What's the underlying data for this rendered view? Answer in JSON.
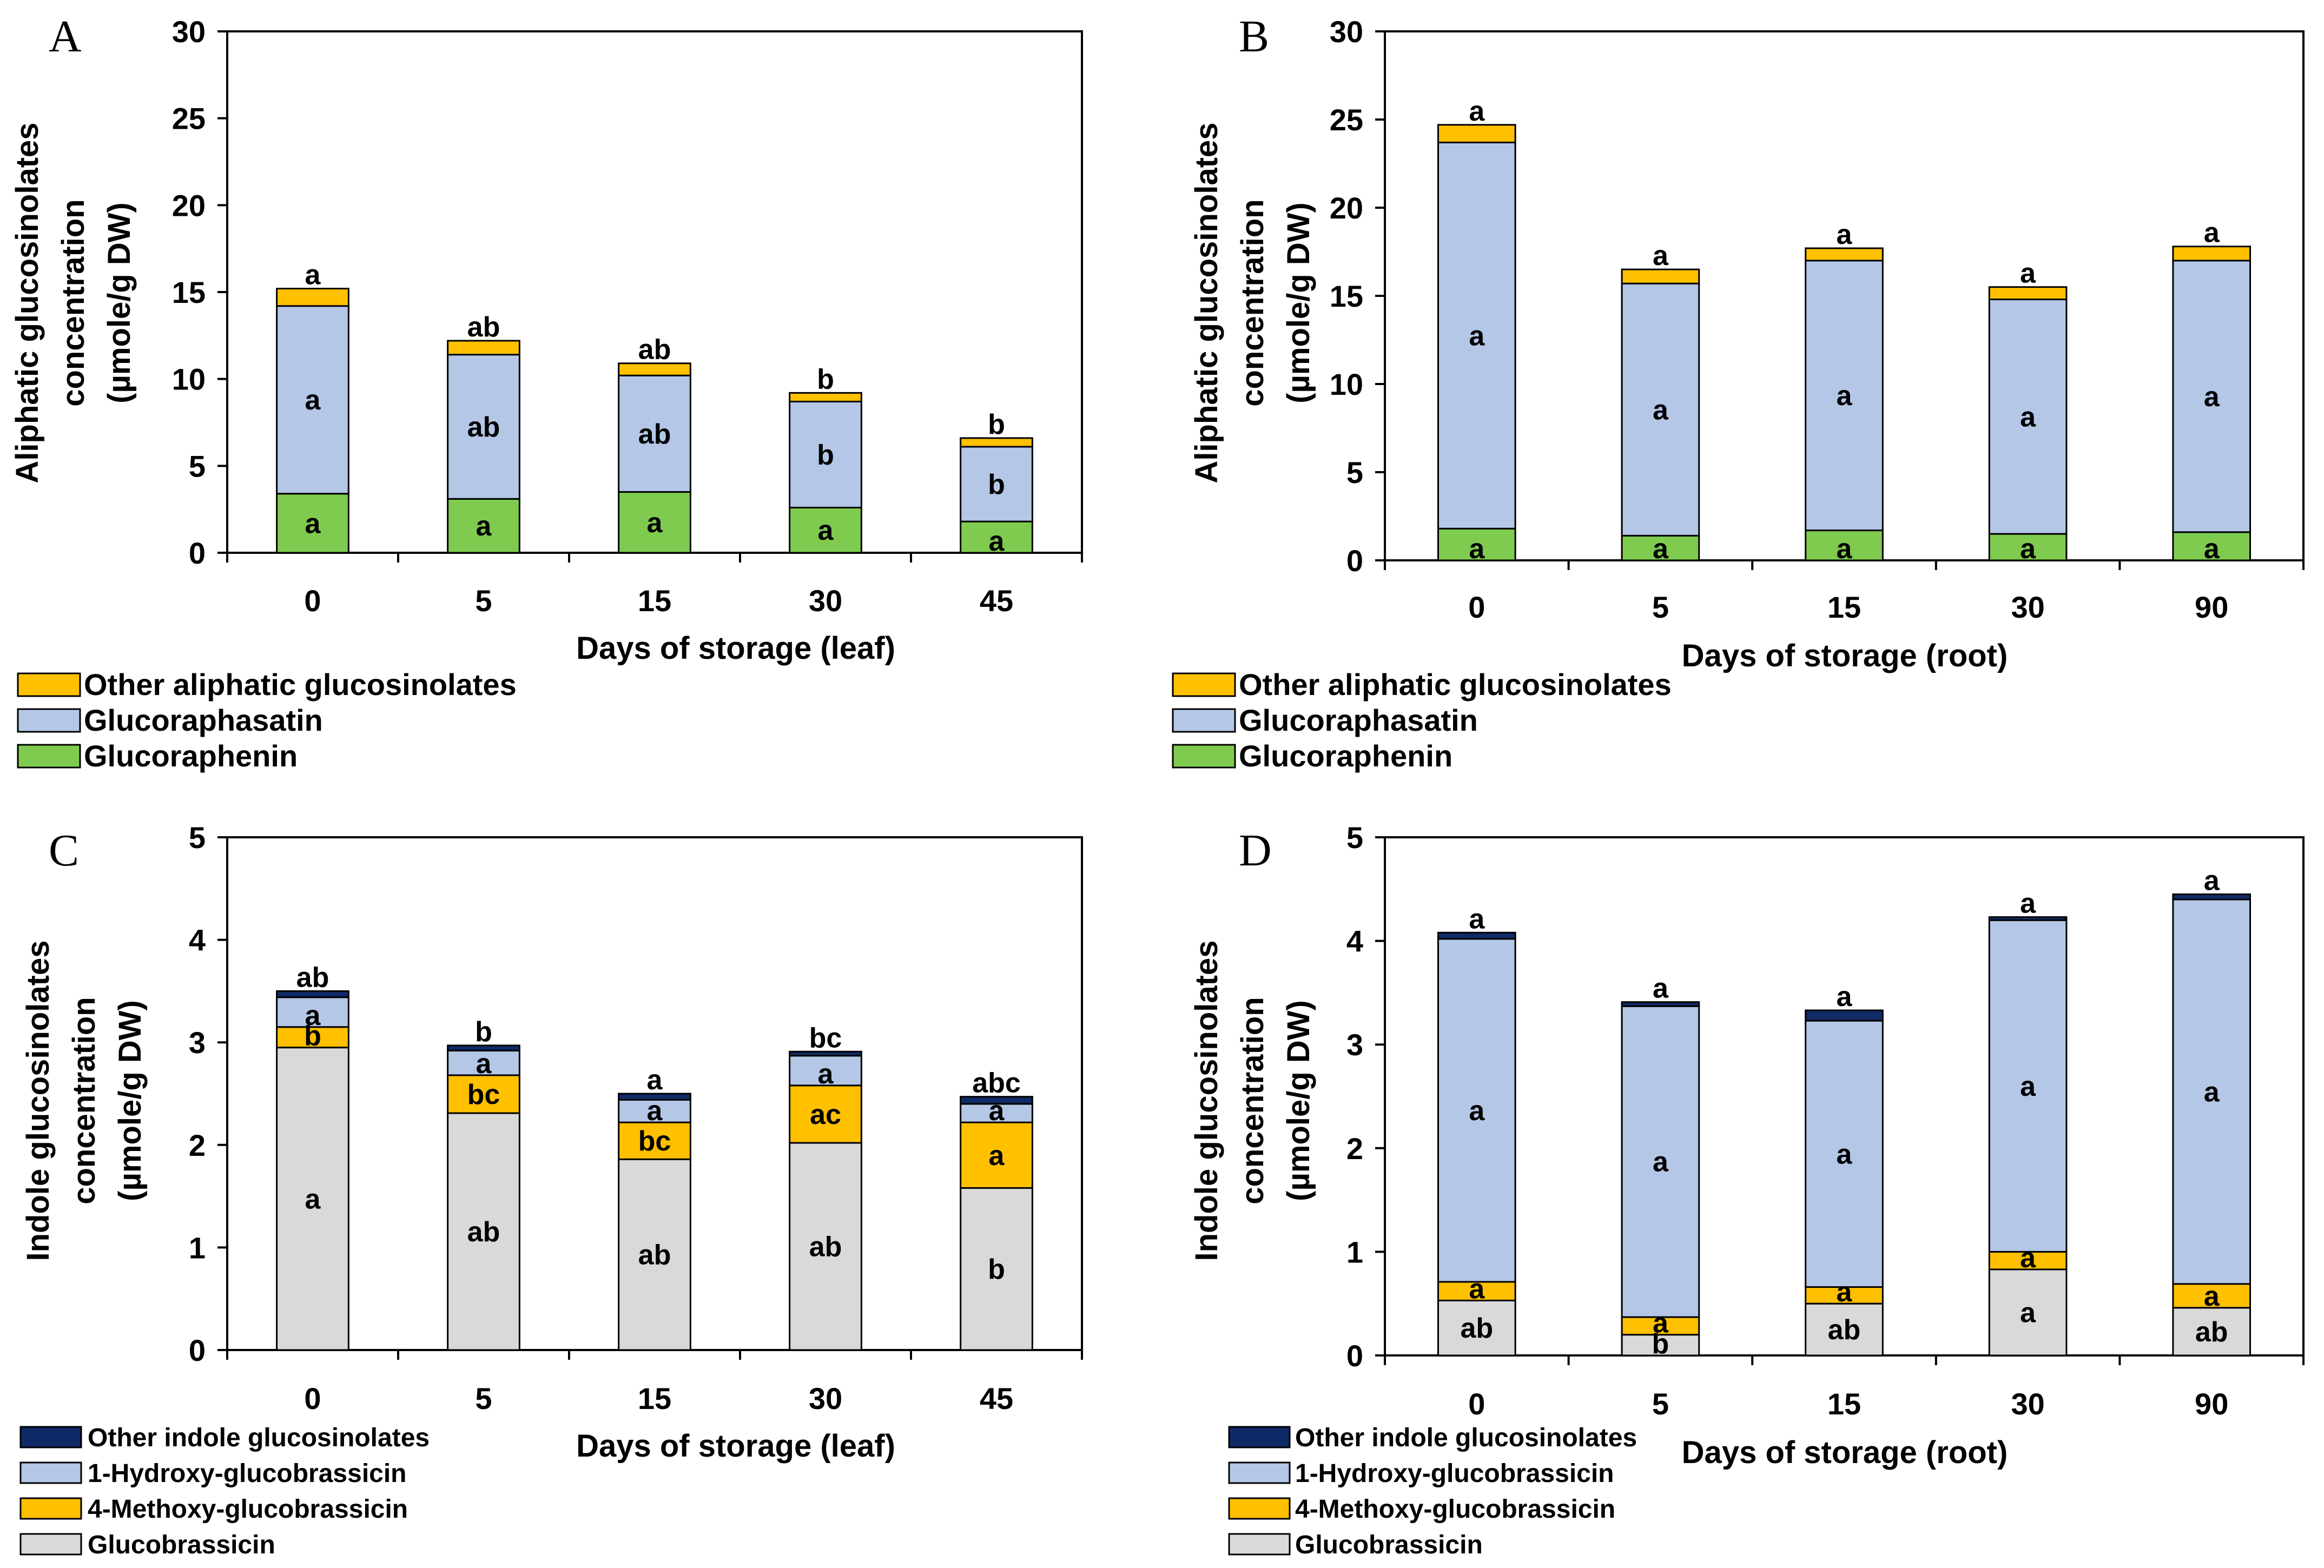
{
  "colors": {
    "other_aliphatic": "#FFC000",
    "glucoraphasatin": "#B4C7E7",
    "glucoraphenin": "#7FCB4F",
    "other_indole": "#0F2A66",
    "hydroxy": "#B4C7E7",
    "methoxy": "#FFC000",
    "glucobrassicin": "#D9D9D9"
  },
  "chart_data": [
    {
      "panel": "A",
      "type": "bar",
      "stacked": true,
      "xlabel": "Days of storage (leaf)",
      "ylabel_lines": [
        "Aliphatic glucosinolates",
        "concentration",
        "(µmole/g DW)"
      ],
      "ylim": [
        0,
        30
      ],
      "yticks": [
        "0",
        "5",
        "10",
        "15",
        "20",
        "25",
        "30"
      ],
      "categories": [
        "0",
        "5",
        "15",
        "30",
        "45"
      ],
      "series": [
        {
          "name": "Glucoraphenin",
          "color_key": "glucoraphenin",
          "values": [
            3.4,
            3.1,
            3.5,
            2.6,
            1.8
          ],
          "labels": [
            "a",
            "a",
            "a",
            "a",
            "a"
          ]
        },
        {
          "name": "Glucoraphasatin",
          "color_key": "glucoraphasatin",
          "values": [
            10.8,
            8.3,
            6.7,
            6.1,
            4.3
          ],
          "labels": [
            "a",
            "ab",
            "ab",
            "b",
            "b"
          ]
        },
        {
          "name": "Other aliphatic glucosinolates",
          "color_key": "other_aliphatic",
          "values": [
            1.0,
            0.8,
            0.7,
            0.5,
            0.5
          ],
          "labels": [
            "a",
            "ab",
            "ab",
            "b",
            "b"
          ]
        }
      ],
      "legend_order": [
        2,
        1,
        0
      ]
    },
    {
      "panel": "B",
      "type": "bar",
      "stacked": true,
      "xlabel": "Days of storage (root)",
      "ylabel_lines": [
        "Aliphatic glucosinolates",
        "concentration",
        "(µmole/g DW)"
      ],
      "ylim": [
        0,
        30
      ],
      "yticks": [
        "0",
        "5",
        "10",
        "15",
        "20",
        "25",
        "30"
      ],
      "categories": [
        "0",
        "5",
        "15",
        "30",
        "90"
      ],
      "series": [
        {
          "name": "Glucoraphenin",
          "color_key": "glucoraphenin",
          "values": [
            1.8,
            1.4,
            1.7,
            1.5,
            1.6
          ],
          "labels": [
            "a",
            "a",
            "a",
            "a",
            "a"
          ]
        },
        {
          "name": "Glucoraphasatin",
          "color_key": "glucoraphasatin",
          "values": [
            21.9,
            14.3,
            15.3,
            13.3,
            15.4
          ],
          "labels": [
            "a",
            "a",
            "a",
            "a",
            "a"
          ]
        },
        {
          "name": "Other aliphatic glucosinolates",
          "color_key": "other_aliphatic",
          "values": [
            1.0,
            0.8,
            0.7,
            0.7,
            0.8
          ],
          "labels": [
            "a",
            "a",
            "a",
            "a",
            "a"
          ]
        }
      ],
      "legend_order": [
        2,
        1,
        0
      ]
    },
    {
      "panel": "C",
      "type": "bar",
      "stacked": true,
      "xlabel": "Days of storage (leaf)",
      "ylabel_lines": [
        "Indole glucosinolates",
        "concentration",
        "(µmole/g DW)"
      ],
      "ylim": [
        0,
        5
      ],
      "yticks": [
        "0",
        "1",
        "2",
        "3",
        "4",
        "5"
      ],
      "categories": [
        "0",
        "5",
        "15",
        "30",
        "45"
      ],
      "series": [
        {
          "name": "Glucobrassicin",
          "color_key": "glucobrassicin",
          "values": [
            2.95,
            2.31,
            1.86,
            2.02,
            1.58
          ],
          "labels": [
            "a",
            "ab",
            "ab",
            "ab",
            "b"
          ]
        },
        {
          "name": "4-Methoxy-glucobrassicin",
          "color_key": "methoxy",
          "values": [
            0.2,
            0.37,
            0.36,
            0.56,
            0.64
          ],
          "labels": [
            "b",
            "bc",
            "bc",
            "ac",
            "a"
          ]
        },
        {
          "name": "1-Hydroxy-glucobrassicin",
          "color_key": "hydroxy",
          "values": [
            0.29,
            0.24,
            0.22,
            0.29,
            0.18
          ],
          "labels": [
            "a",
            "a",
            "a",
            "a",
            "a"
          ]
        },
        {
          "name": "Other indole glucosinolates",
          "color_key": "other_indole",
          "values": [
            0.06,
            0.05,
            0.06,
            0.04,
            0.07
          ],
          "labels": [
            "ab",
            "b",
            "a",
            "bc",
            "abc"
          ]
        }
      ],
      "legend_order": [
        3,
        2,
        1,
        0
      ]
    },
    {
      "panel": "D",
      "type": "bar",
      "stacked": true,
      "xlabel": "Days of storage (root)",
      "ylabel_lines": [
        "Indole glucosinolates",
        "concentration",
        "(µmole/g DW)"
      ],
      "ylim": [
        0,
        5
      ],
      "yticks": [
        "0",
        "1",
        "2",
        "3",
        "4",
        "5"
      ],
      "categories": [
        "0",
        "5",
        "15",
        "30",
        "90"
      ],
      "series": [
        {
          "name": "Glucobrassicin",
          "color_key": "glucobrassicin",
          "values": [
            0.53,
            0.2,
            0.5,
            0.83,
            0.46
          ],
          "labels": [
            "ab",
            "b",
            "ab",
            "a",
            "ab"
          ]
        },
        {
          "name": "4-Methoxy-glucobrassicin",
          "color_key": "methoxy",
          "values": [
            0.18,
            0.17,
            0.16,
            0.17,
            0.23
          ],
          "labels": [
            "a",
            "a",
            "a",
            "a",
            "a"
          ]
        },
        {
          "name": "1-Hydroxy-glucobrassicin",
          "color_key": "hydroxy",
          "values": [
            3.31,
            3.0,
            2.57,
            3.2,
            3.71
          ],
          "labels": [
            "a",
            "a",
            "a",
            "a",
            "a"
          ]
        },
        {
          "name": "Other indole glucosinolates",
          "color_key": "other_indole",
          "values": [
            0.06,
            0.04,
            0.1,
            0.03,
            0.05
          ],
          "labels": [
            "a",
            "a",
            "a",
            "a",
            "a"
          ]
        }
      ],
      "legend_order": [
        3,
        2,
        1,
        0
      ]
    }
  ]
}
